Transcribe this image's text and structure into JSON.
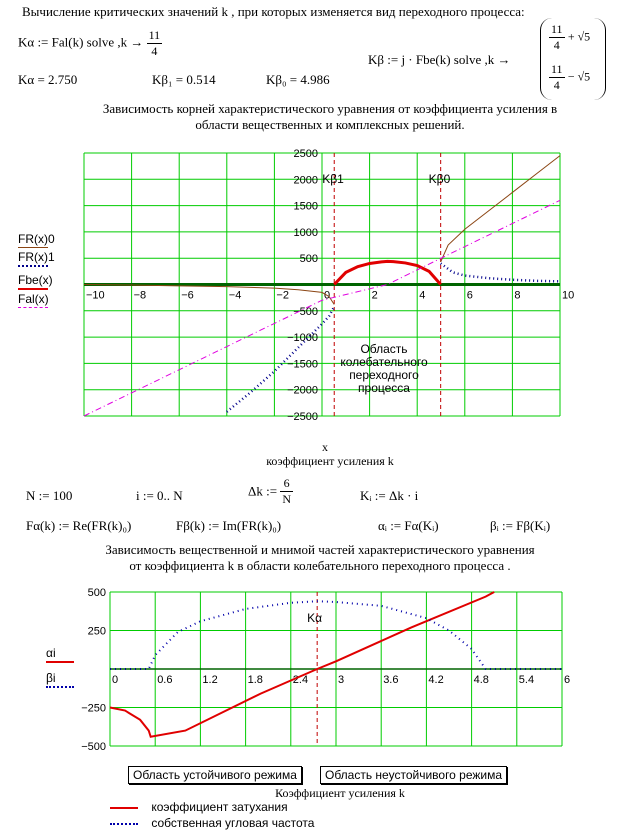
{
  "header": {
    "title": "Вычисление критических значений k  , при которых изменяется вид переходного процесса:",
    "k_alpha_expr": "Kα := Fal(k)  solve ,k  →",
    "k_alpha_frac_num": "11",
    "k_alpha_frac_den": "4",
    "k_beta_expr": "Kβ := j · Fbe(k)  solve ,k  →",
    "k_beta_row1_num": "11",
    "k_beta_row1_den": "4",
    "k_beta_row1_op": "+ √5",
    "k_beta_row2_num": "11",
    "k_beta_row2_den": "4",
    "k_beta_row2_op": "− √5",
    "k_alpha_value": "Kα = 2.750",
    "k_beta1_value": "Kβ₁ = 0.514",
    "k_beta0_value": "Kβ₀ = 4.986"
  },
  "chart1": {
    "title_line1": "Зависимость корней характеристического уравнения от коэффициента усиления в",
    "title_line2": "области вещественных и комплексных решений.",
    "xlabel_var": "x",
    "xlabel": "коэффициент усиления k",
    "annotation": [
      "Область",
      "колебательного",
      "переходного",
      "процесса"
    ],
    "kb1_label": "Kβ1",
    "kb0_label": "Kβ0",
    "legend": [
      {
        "name": "FR(x)0",
        "color": "#8b4513",
        "style": "solid"
      },
      {
        "name": "FR(x)1",
        "color": "#00008b",
        "style": "dotted"
      },
      {
        "name": "Fbe(x)",
        "color": "#e00000",
        "style": "solid-thick"
      },
      {
        "name": "Fal(x)",
        "color": "#e000e0",
        "style": "dashdot"
      }
    ]
  },
  "chart2": {
    "title_line1": "Зависимость вещественной    и мнимой   частей характеристического уравнения",
    "title_line2": "от коэффициента k в области колебательного      переходного процесса .",
    "ka_label": "Kα",
    "legend_alpha": "αi",
    "legend_beta": "βi",
    "xlabel": "Коэффициент усиления k",
    "region_stable": "Область устойчивого режима",
    "region_unstable": "Область неустойчивого режима",
    "legend_bottom": [
      {
        "label": "коэффициент затухания",
        "color": "#e00000",
        "style": "solid"
      },
      {
        "label": "собственная угловая частота",
        "color": "#0000aa",
        "style": "dotted"
      }
    ]
  },
  "defs": {
    "n_def": "N := 100",
    "i_def": "i := 0.. N",
    "dk_lhs": "Δk :=",
    "dk_num": "6",
    "dk_den": "N",
    "k_def": "Kᵢ := Δk · i",
    "f_alpha": "Fα(k) := Re(FR(k)₀)",
    "f_beta": "Fβ(k) := Im(FR(k)₀)",
    "alpha_def": "αᵢ := Fα(Kᵢ)",
    "beta_def": "βᵢ := Fβ(Kᵢ)"
  },
  "chart_data": [
    {
      "type": "line",
      "title": "Зависимость корней характеристического уравнения от коэффициента усиления в области вещественных и комплексных решений.",
      "xlabel": "коэффициент усиления k",
      "ylabel": "",
      "xlim": [
        -10,
        10
      ],
      "ylim": [
        -2500,
        2500
      ],
      "x_ticks": [
        -10,
        -8,
        -6,
        -4,
        -2,
        0,
        2,
        4,
        6,
        8,
        10
      ],
      "y_ticks": [
        -2500,
        -2000,
        -1500,
        -1000,
        -500,
        0,
        500,
        1000,
        1500,
        2000,
        2500
      ],
      "grid": true,
      "vlines": [
        {
          "x": 0.514,
          "label": "Kβ1"
        },
        {
          "x": 4.986,
          "label": "Kβ0"
        }
      ],
      "series": [
        {
          "name": "FR(x)0",
          "x": [
            -10,
            -8,
            -6,
            -4,
            -2,
            -1,
            0,
            0.3,
            0.514,
            4.986,
            5.3,
            6,
            7,
            8,
            9,
            10
          ],
          "y": [
            0,
            -10,
            -25,
            -40,
            -70,
            -100,
            -150,
            -230,
            -380,
            430,
            750,
            1050,
            1400,
            1750,
            2100,
            2450
          ]
        },
        {
          "name": "FR(x)1",
          "x": [
            -4,
            -3,
            -2,
            -1,
            0,
            0.3,
            0.514,
            4.986,
            5.5,
            6,
            7,
            8,
            9,
            10
          ],
          "y": [
            -2420,
            -2050,
            -1650,
            -1200,
            -750,
            -600,
            -420,
            400,
            230,
            170,
            120,
            90,
            70,
            60
          ]
        },
        {
          "name": "Fbe(x)",
          "x": [
            0.514,
            1,
            1.5,
            2,
            2.5,
            2.75,
            3,
            3.5,
            4,
            4.5,
            4.986
          ],
          "y": [
            0,
            230,
            340,
            400,
            430,
            440,
            435,
            410,
            360,
            250,
            0
          ]
        },
        {
          "name": "Fal(x)",
          "x": [
            -10,
            -5,
            0,
            2.75,
            5,
            10
          ],
          "y": [
            -2500,
            -1400,
            -300,
            0,
            500,
            1600
          ]
        }
      ]
    },
    {
      "type": "line",
      "title": "Зависимость вещественной и мнимой частей характеристического уравнения от коэффициента k в области колебательного переходного процесса.",
      "xlabel": "Коэффициент усиления k",
      "ylabel": "",
      "xlim": [
        0,
        6
      ],
      "ylim": [
        -500,
        500
      ],
      "x_ticks": [
        0,
        0.6,
        1.2,
        1.8,
        2.4,
        3,
        3.6,
        4.2,
        4.8,
        5.4,
        6
      ],
      "y_ticks": [
        -500,
        -250,
        0,
        250,
        500
      ],
      "grid": true,
      "vlines": [
        {
          "x": 2.75,
          "label": "Kα"
        }
      ],
      "series": [
        {
          "name": "αi",
          "x": [
            0,
            0.2,
            0.4,
            0.514,
            0.54,
            1,
            2,
            2.75,
            3,
            4,
            4.986,
            5.1
          ],
          "y": [
            -250,
            -270,
            -330,
            -400,
            -440,
            -400,
            -160,
            0,
            50,
            270,
            470,
            510
          ]
        },
        {
          "name": "βi",
          "x": [
            0,
            0.4,
            0.514,
            0.6,
            0.9,
            1.2,
            1.8,
            2.4,
            2.75,
            3.0,
            3.6,
            4.2,
            4.5,
            4.8,
            4.986,
            5.3,
            6
          ],
          "y": [
            0,
            0,
            0,
            90,
            240,
            310,
            390,
            430,
            440,
            435,
            410,
            330,
            250,
            130,
            0,
            0,
            0
          ]
        }
      ]
    }
  ]
}
